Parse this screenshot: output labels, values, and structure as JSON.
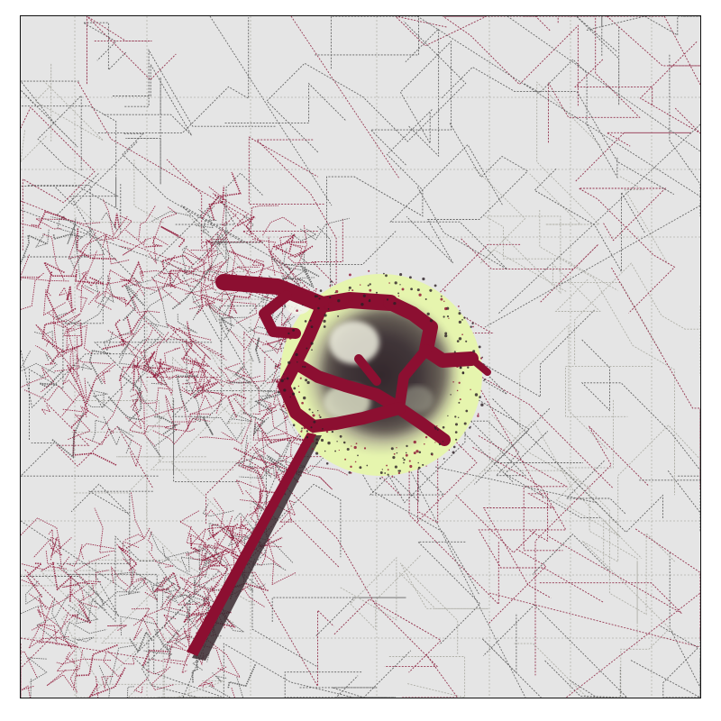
{
  "artwork": {
    "kind": "generative network render",
    "colors": {
      "background": "#e5e5e5",
      "frame": "#111111",
      "line_gray": "#555555",
      "line_light": "#a8a8a0",
      "line_crimson": "#8a1f3d",
      "trunk_crimson": "#8c0f31",
      "glow_outer": "#e6f5ae",
      "glow_mid": "#b9b89a",
      "dark_core": "#2a1e24"
    }
  }
}
